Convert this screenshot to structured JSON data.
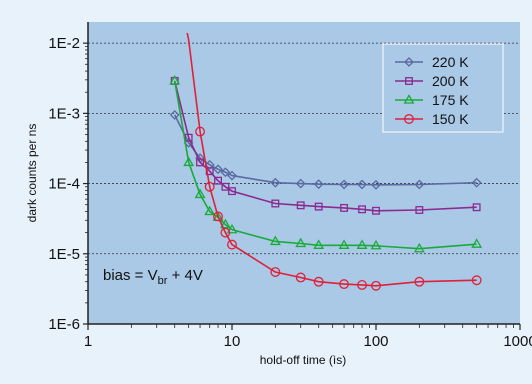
{
  "chart_data": {
    "type": "line",
    "xlabel": "hold-off time (ìs)",
    "ylabel": "dark counts per ns",
    "xscale": "log",
    "yscale": "log",
    "xlim": [
      1,
      1000
    ],
    "ylim": [
      1e-06,
      0.02
    ],
    "xticks": [
      {
        "value": 1,
        "label": "1"
      },
      {
        "value": 10,
        "label": "10"
      },
      {
        "value": 100,
        "label": "100"
      },
      {
        "value": 1000,
        "label": "1000"
      }
    ],
    "yticks": [
      {
        "value": 1e-06,
        "label": "1E-6"
      },
      {
        "value": 1e-05,
        "label": "1E-5"
      },
      {
        "value": 0.0001,
        "label": "1E-4"
      },
      {
        "value": 0.001,
        "label": "1E-3"
      },
      {
        "value": 0.01,
        "label": "1E-2"
      }
    ],
    "grid": "horizontal dashed",
    "legend_position": "top-right",
    "annotation": {
      "prefix": "bias = V",
      "subscript": "br",
      "suffix": " + 4V"
    },
    "series": [
      {
        "name": "220 K",
        "color": "#5b6aa0",
        "marker": "diamond",
        "x": [
          4,
          5,
          6,
          7,
          8,
          9,
          10,
          20,
          30,
          40,
          60,
          80,
          100,
          200,
          500
        ],
        "y": [
          0.00095,
          0.00038,
          0.00023,
          0.000185,
          0.00016,
          0.000145,
          0.00013,
          0.000103,
          0.0001,
          9.8e-05,
          9.7e-05,
          9.7e-05,
          9.6e-05,
          9.7e-05,
          0.000103
        ]
      },
      {
        "name": "200 K",
        "color": "#8b2a8f",
        "marker": "square",
        "x": [
          4,
          5,
          6,
          7,
          8,
          9,
          10,
          20,
          30,
          40,
          60,
          80,
          100,
          200,
          500
        ],
        "y": [
          0.0029,
          0.00045,
          0.0002,
          0.00015,
          0.00011,
          9e-05,
          7.8e-05,
          5.2e-05,
          4.9e-05,
          4.7e-05,
          4.5e-05,
          4.3e-05,
          4.1e-05,
          4.2e-05,
          4.6e-05
        ]
      },
      {
        "name": "175 K",
        "color": "#1aaa3a",
        "marker": "triangle",
        "x": [
          4,
          5,
          6,
          7,
          8,
          9,
          10,
          20,
          30,
          40,
          60,
          80,
          100,
          200,
          500
        ],
        "y": [
          0.0029,
          0.0002,
          7e-05,
          4e-05,
          3.3e-05,
          2.6e-05,
          2.2e-05,
          1.5e-05,
          1.4e-05,
          1.32e-05,
          1.32e-05,
          1.32e-05,
          1.3e-05,
          1.18e-05,
          1.37e-05
        ]
      },
      {
        "name": "150 K",
        "color": "#e0203a",
        "marker": "circle",
        "x": [
          5,
          6,
          7,
          8,
          9,
          10,
          20,
          30,
          40,
          60,
          80,
          100,
          200,
          500
        ],
        "y": [
          0.011,
          0.00055,
          9e-05,
          3.4e-05,
          2e-05,
          1.35e-05,
          5.5e-06,
          4.6e-06,
          4e-06,
          3.7e-06,
          3.6e-06,
          3.5e-06,
          4e-06,
          4.2e-06
        ]
      }
    ]
  }
}
